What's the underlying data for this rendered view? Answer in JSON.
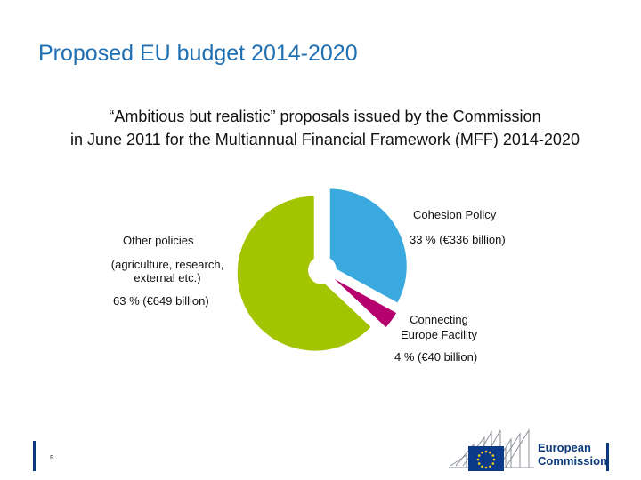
{
  "slide": {
    "title": "Proposed EU budget 2014-2020",
    "subtitle_line1": "“Ambitious but realistic” proposals issued by the Commission",
    "subtitle_line2": "in June 2011 for the Multiannual Financial Framework (MFF) 2014-2020",
    "page_number": "5"
  },
  "labels": {
    "cohesion_name": "Cohesion Policy",
    "cohesion_value": "33 % (€336 billion)",
    "other_name": "Other policies",
    "other_detail_1": "(agriculture, research,",
    "other_detail_2": "external etc.)",
    "other_value": "63 % (€649 billion)",
    "cef_name_1": "Connecting",
    "cef_name_2": "Europe Facility",
    "cef_value": "4 % (€40 billion)"
  },
  "logo": {
    "line1": "European",
    "line2": "Commission"
  },
  "colors": {
    "title": "#1f6fb2",
    "cohesion": "#3aa9de",
    "cef": "#b5006e",
    "other": "#a3c400"
  },
  "chart_data": {
    "type": "pie",
    "title": "",
    "slices": [
      {
        "label": "Cohesion Policy",
        "percent": 33,
        "value": 336,
        "unit": "€ billion",
        "color": "#3aa9de"
      },
      {
        "label": "Connecting Europe Facility",
        "percent": 4,
        "value": 40,
        "unit": "€ billion",
        "color": "#b5006e"
      },
      {
        "label": "Other policies",
        "percent": 63,
        "value": 649,
        "unit": "€ billion",
        "color": "#a3c400"
      }
    ],
    "start": "top",
    "direction": "clockwise",
    "exploded": true
  }
}
